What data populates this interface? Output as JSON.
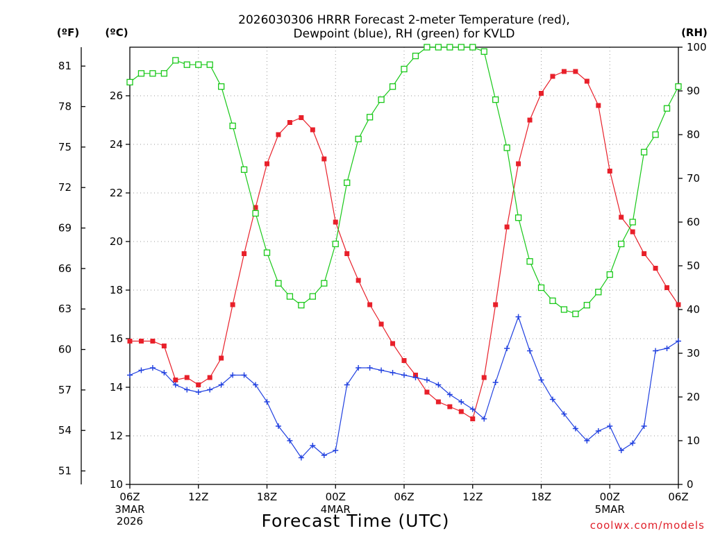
{
  "chart_data": {
    "type": "line",
    "title_line1": "2026030306 HRRR Forecast 2-meter Temperature (red),",
    "title_line2": "Dewpoint (blue), RH (green) for KVLD",
    "xlabel": "Forecast Time (UTC)",
    "credit": "coolwx.com/models",
    "units": {
      "fahrenheit": "(ºF)",
      "celsius": "(ºC)",
      "rh": "(RH)"
    },
    "hours": [
      0,
      1,
      2,
      3,
      4,
      5,
      6,
      7,
      8,
      9,
      10,
      11,
      12,
      13,
      14,
      15,
      16,
      17,
      18,
      19,
      20,
      21,
      22,
      23,
      24,
      25,
      26,
      27,
      28,
      29,
      30,
      31,
      32,
      33,
      34,
      35,
      36,
      37,
      38,
      39,
      40,
      41,
      42,
      43,
      44,
      45,
      46,
      47,
      48
    ],
    "x_ticks": [
      {
        "hour": 0,
        "label": "06Z",
        "sub": [
          "3MAR",
          "2026"
        ]
      },
      {
        "hour": 6,
        "label": "12Z",
        "sub": []
      },
      {
        "hour": 12,
        "label": "18Z",
        "sub": []
      },
      {
        "hour": 18,
        "label": "00Z",
        "sub": [
          "4MAR"
        ]
      },
      {
        "hour": 24,
        "label": "06Z",
        "sub": []
      },
      {
        "hour": 30,
        "label": "12Z",
        "sub": []
      },
      {
        "hour": 36,
        "label": "18Z",
        "sub": []
      },
      {
        "hour": 42,
        "label": "00Z",
        "sub": [
          "5MAR"
        ]
      },
      {
        "hour": 48,
        "label": "06Z",
        "sub": []
      }
    ],
    "y_celsius": {
      "min": 10,
      "max": 28,
      "ticks": [
        "10",
        "12",
        "14",
        "16",
        "18",
        "20",
        "22",
        "24",
        "26"
      ]
    },
    "y_fahrenheit": {
      "ticks": [
        "51",
        "54",
        "57",
        "60",
        "63",
        "66",
        "69",
        "72",
        "75",
        "78",
        "81"
      ]
    },
    "y_rh": {
      "min": 0,
      "max": 100,
      "ticks": [
        "0",
        "10",
        "20",
        "30",
        "40",
        "50",
        "60",
        "70",
        "80",
        "90",
        "100"
      ]
    },
    "series": [
      {
        "name": "Temperature",
        "unit": "°C",
        "color": "#e8202a",
        "marker": "filled-square",
        "values": [
          15.9,
          15.9,
          15.9,
          15.7,
          14.3,
          14.4,
          14.1,
          14.4,
          15.2,
          17.4,
          19.5,
          21.4,
          23.2,
          24.4,
          24.9,
          25.1,
          24.6,
          23.4,
          20.8,
          19.5,
          18.4,
          17.4,
          16.6,
          15.8,
          15.1,
          14.5,
          13.8,
          13.4,
          13.2,
          13.0,
          12.7,
          14.4,
          17.4,
          20.6,
          23.2,
          25.0,
          26.1,
          26.8,
          27.0,
          27.0,
          26.6,
          25.6,
          22.9,
          21.0,
          20.4,
          19.5,
          18.9,
          18.1,
          17.4
        ]
      },
      {
        "name": "Dewpoint",
        "unit": "°C",
        "color": "#2040e0",
        "marker": "plus",
        "values": [
          14.5,
          14.7,
          14.8,
          14.6,
          14.1,
          13.9,
          13.8,
          13.9,
          14.1,
          14.5,
          14.5,
          14.1,
          13.4,
          12.4,
          11.8,
          11.1,
          11.6,
          11.2,
          11.4,
          14.1,
          14.8,
          14.8,
          14.7,
          14.6,
          14.5,
          14.4,
          14.3,
          14.1,
          13.7,
          13.4,
          13.1,
          12.7,
          14.2,
          15.6,
          16.9,
          15.5,
          14.3,
          13.5,
          12.9,
          12.3,
          11.8,
          12.2,
          12.4,
          11.4,
          11.7,
          12.4,
          15.5,
          15.6,
          15.9
        ]
      },
      {
        "name": "RH",
        "unit": "%",
        "color": "#18c818",
        "marker": "open-square",
        "values": [
          92,
          94,
          94,
          94,
          97,
          96,
          96,
          96,
          91,
          82,
          72,
          62,
          53,
          46,
          43,
          41,
          43,
          46,
          55,
          69,
          79,
          84,
          88,
          91,
          95,
          98,
          100,
          100,
          100,
          100,
          100,
          99,
          88,
          77,
          61,
          51,
          45,
          42,
          40,
          39,
          41,
          44,
          48,
          55,
          60,
          76,
          80,
          86,
          91
        ]
      }
    ]
  }
}
